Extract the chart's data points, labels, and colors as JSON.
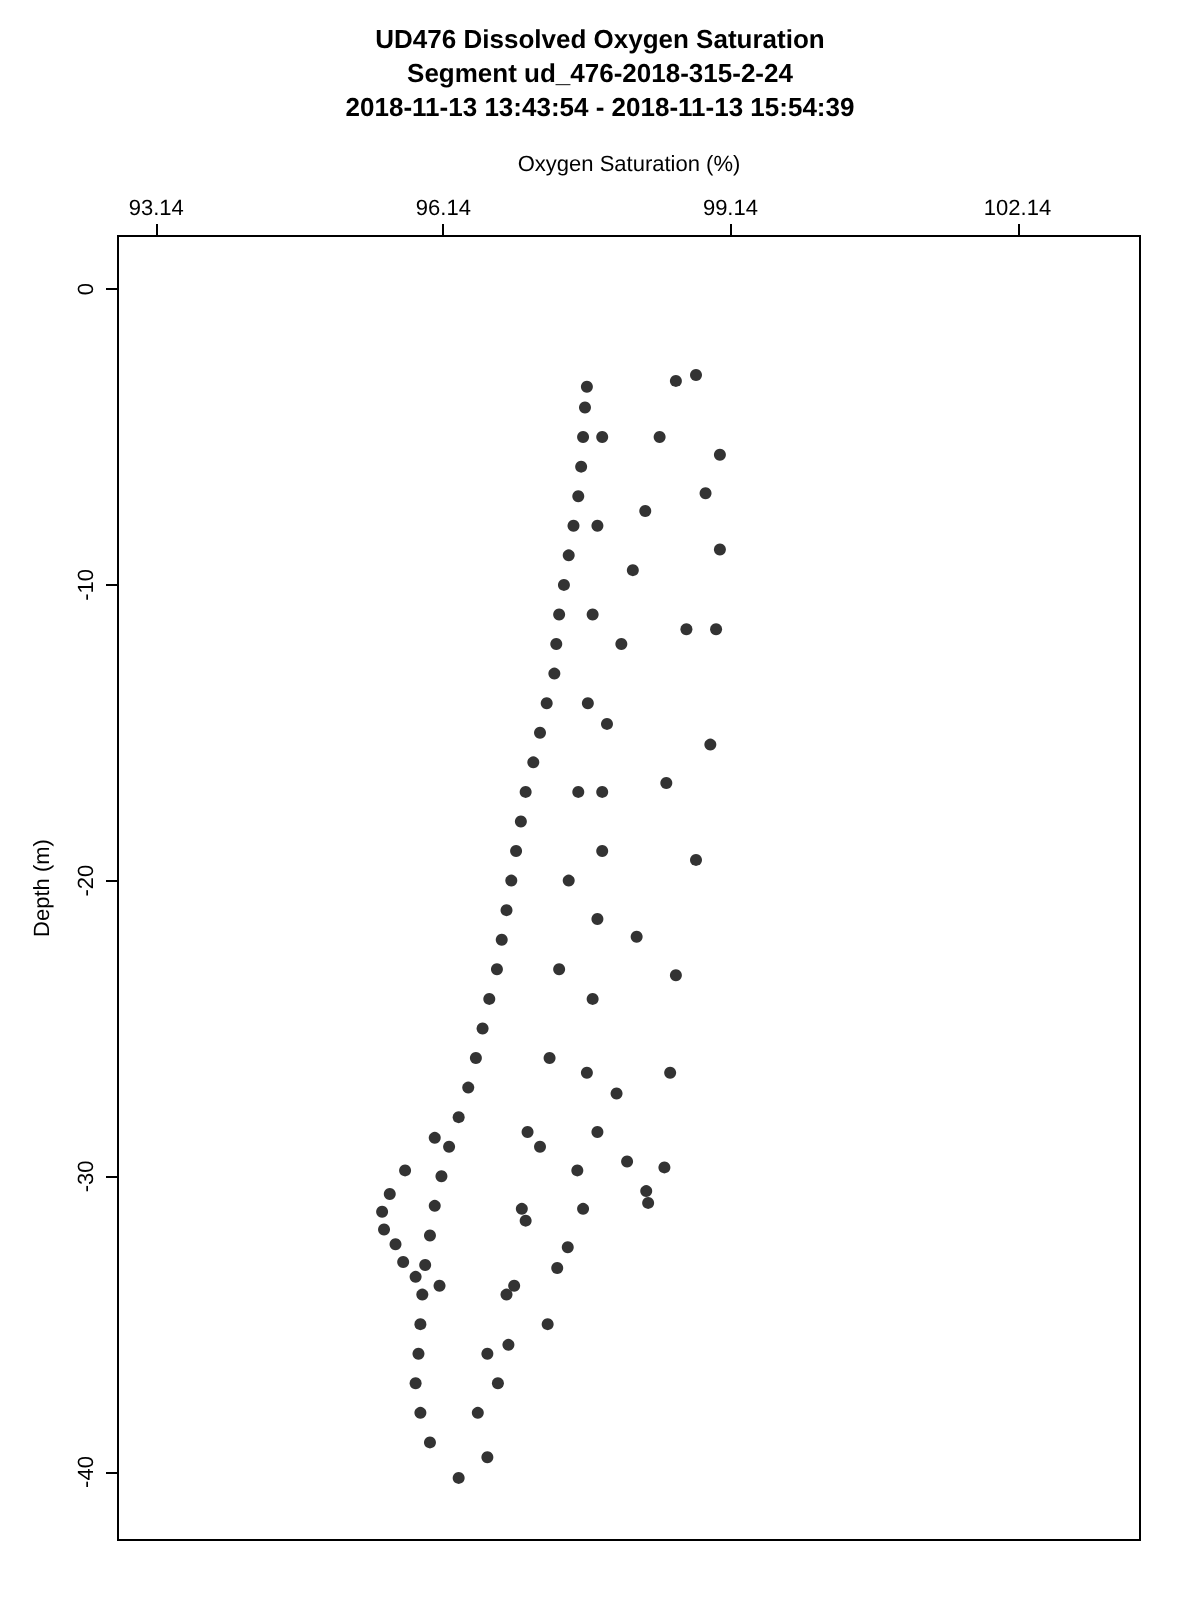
{
  "chart_data": {
    "type": "scatter",
    "title": "UD476 Dissolved Oxygen Saturation",
    "subtitle": "Segment ud_476-2018-315-2-24\n2018-11-13 13:43:54 - 2018-11-13 15:54:39",
    "xlabel": "Oxygen Saturation (%)",
    "ylabel": "Depth (m)",
    "xlim": [
      92.74,
      103.42
    ],
    "xticks": [
      93.14,
      96.14,
      99.14,
      102.14
    ],
    "ylim": [
      -42.3,
      1.8
    ],
    "yticks": [
      0,
      -10,
      -20,
      -30,
      -40
    ],
    "grid": false,
    "marker": "circle",
    "series": [
      {
        "color": "#000000",
        "x": [
          97.64,
          97.6,
          97.55,
          97.45,
          97.35,
          97.3,
          97.15,
          97.0,
          96.9,
          96.8,
          96.7,
          96.55,
          96.4,
          96.2,
          96.05,
          95.95,
          95.9,
          95.85,
          96.0,
          96.3
        ],
        "values": [
          -3.3,
          -5,
          -7,
          -9,
          -11,
          -13,
          -15,
          -17,
          -19,
          -21,
          -23,
          -25,
          -27,
          -29,
          -31,
          -33,
          -35,
          -37,
          -39,
          -40.2
        ]
      },
      {
        "color": "#000000",
        "x": [
          97.8,
          97.75,
          97.7,
          97.65,
          97.55,
          97.45,
          97.35,
          97.25,
          97.15,
          97.0,
          96.8,
          96.6,
          96.5,
          96.6
        ],
        "values": [
          -5,
          -8,
          -11,
          -14,
          -17,
          -20,
          -23,
          -26,
          -29,
          -31.5,
          -34,
          -36,
          -38,
          -39.5
        ]
      },
      {
        "color": "#000000",
        "x": [
          98.57,
          98.12,
          97.85,
          97.75,
          97.64,
          97.54
        ],
        "values": [
          -3.1,
          -9.5,
          -14.7,
          -21.3,
          -26.5,
          -29.8
        ]
      },
      {
        "color": "#000000",
        "x": [
          97.62,
          97.58,
          97.5,
          97.4,
          97.32,
          97.22,
          97.08,
          96.95,
          96.85,
          96.75,
          96.62,
          96.48,
          96.3,
          96.12,
          96.0,
          95.92,
          95.88,
          95.9
        ],
        "values": [
          -4,
          -6,
          -8,
          -10,
          -12,
          -14,
          -16,
          -18,
          -20,
          -22,
          -24,
          -26,
          -28,
          -30,
          -32,
          -34,
          -36,
          -38
        ]
      },
      {
        "color": "#000000",
        "x": [
          98.4,
          98.25,
          98.0,
          97.8,
          97.8,
          97.7
        ],
        "values": [
          -5,
          -7.5,
          -12,
          -17,
          -19,
          -24
        ]
      },
      {
        "color": "#000000",
        "x": [
          98.78,
          98.88,
          98.68,
          98.47,
          98.16,
          97.95,
          98.06,
          98.26
        ],
        "values": [
          -2.9,
          -6.9,
          -11.5,
          -16.7,
          -21.9,
          -27.2,
          -29.5,
          -30.5
        ]
      },
      {
        "color": "#000000",
        "x": [
          99.03,
          99.03,
          98.99,
          98.93,
          98.78,
          98.57,
          98.51,
          98.45,
          98.28
        ],
        "values": [
          -5.6,
          -8.8,
          -11.5,
          -15.4,
          -19.3,
          -23.2,
          -26.5,
          -29.7,
          -30.9
        ]
      },
      {
        "color": "#000000",
        "x": [
          96.05,
          95.74,
          95.58,
          95.5,
          95.52,
          95.64,
          95.72,
          95.85,
          96.1
        ],
        "values": [
          -28.7,
          -29.8,
          -30.6,
          -31.2,
          -31.8,
          -32.3,
          -32.9,
          -33.4,
          -33.7
        ]
      },
      {
        "color": "#000000",
        "x": [
          97.02,
          96.96,
          96.88,
          96.82,
          96.71,
          97.33,
          97.23,
          97.75,
          97.6,
          97.44
        ],
        "values": [
          -28.5,
          -31.1,
          -33.7,
          -35.7,
          -37,
          -33.1,
          -35.0,
          -28.5,
          -31.1,
          -32.4
        ]
      }
    ]
  }
}
